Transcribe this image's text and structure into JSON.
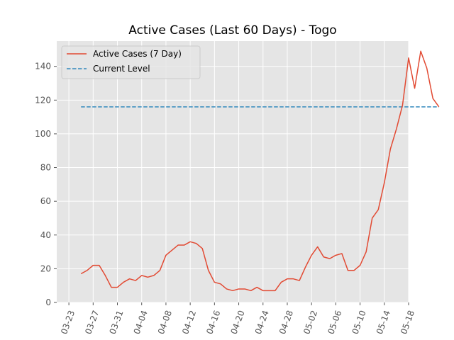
{
  "chart_data": {
    "type": "line",
    "title": "Active Cases (Last 60 Days) - Togo",
    "xlabel": "",
    "ylabel": "",
    "x_start": "03-25",
    "x_ticks": [
      "03-23",
      "03-27",
      "03-31",
      "04-04",
      "04-08",
      "04-12",
      "04-16",
      "04-20",
      "04-24",
      "04-28",
      "05-02",
      "05-06",
      "05-10",
      "05-14",
      "05-18"
    ],
    "y_ticks": [
      0,
      20,
      40,
      60,
      80,
      100,
      120,
      140
    ],
    "xlim": [
      "03-21",
      "05-18"
    ],
    "ylim": [
      0,
      155
    ],
    "grid": true,
    "legend_position": "top-left",
    "series": [
      {
        "name": "Active Cases (7 Day)",
        "color": "#E24A33",
        "style": "solid",
        "values": [
          17,
          19,
          22,
          22,
          16,
          9,
          9,
          12,
          14,
          13,
          16,
          15,
          16,
          19,
          28,
          31,
          34,
          34,
          36,
          35,
          32,
          19,
          12,
          11,
          8,
          7,
          8,
          8,
          7,
          9,
          7,
          7,
          7,
          12,
          14,
          14,
          13,
          21,
          28,
          33,
          27,
          26,
          28,
          29,
          19,
          19,
          22,
          30,
          50,
          55,
          71,
          91,
          103,
          117,
          145,
          127,
          149,
          139,
          121,
          116
        ]
      },
      {
        "name": "Current Level",
        "color": "#348ABD",
        "style": "dashed",
        "constant": 116
      }
    ]
  }
}
